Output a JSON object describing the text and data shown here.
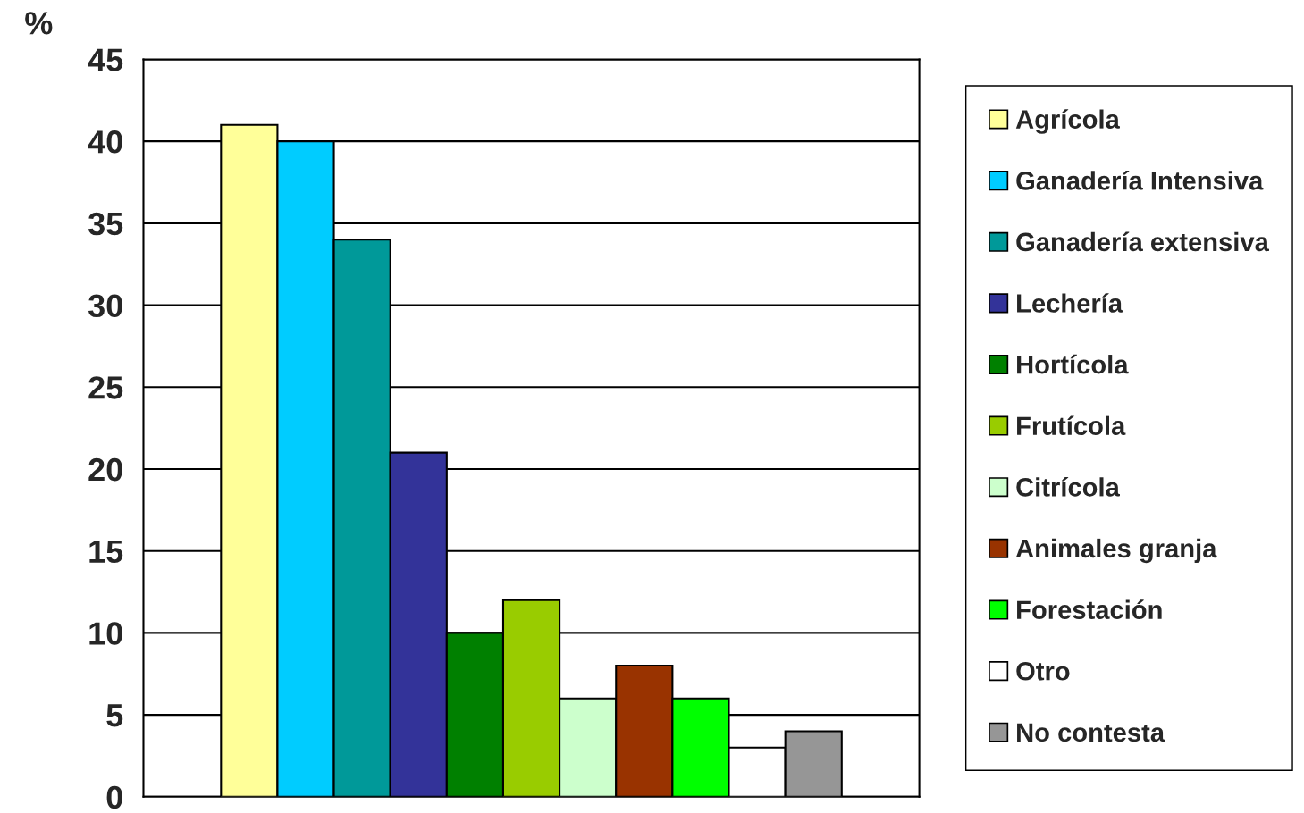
{
  "chart_data": {
    "type": "bar",
    "ylabel": "%",
    "categories": [
      null
    ],
    "series": [
      {
        "name": "Agrícola",
        "color": "#ffff99",
        "values": [
          41
        ]
      },
      {
        "name": "Ganadería Intensiva",
        "color": "#00ccff",
        "values": [
          40
        ]
      },
      {
        "name": "Ganadería extensiva",
        "color": "#009999",
        "values": [
          34
        ]
      },
      {
        "name": "Lechería",
        "color": "#333399",
        "values": [
          21
        ]
      },
      {
        "name": "Hortícola",
        "color": "#008000",
        "values": [
          10
        ]
      },
      {
        "name": "Frutícola",
        "color": "#99cc00",
        "values": [
          12
        ]
      },
      {
        "name": "Citrícola",
        "color": "#ccffcc",
        "values": [
          6
        ]
      },
      {
        "name": "Animales granja",
        "color": "#993300",
        "values": [
          8
        ]
      },
      {
        "name": "Forestación",
        "color": "#00ff00",
        "values": [
          6
        ]
      },
      {
        "name": "Otro",
        "color": "#ffffff",
        "values": [
          3
        ]
      },
      {
        "name": "No contesta",
        "color": "#969696",
        "values": [
          4
        ]
      }
    ],
    "ylim": [
      0,
      45
    ],
    "yticks": [
      0,
      5,
      10,
      15,
      20,
      25,
      30,
      35,
      40,
      45
    ],
    "grid": "y",
    "legend": "right",
    "tick_labels": "y"
  }
}
